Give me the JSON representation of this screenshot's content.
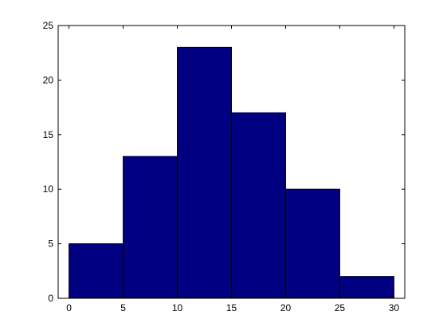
{
  "chart_data": {
    "type": "bar",
    "title": "",
    "xlabel": "",
    "ylabel": "",
    "bins": [
      {
        "x0": 0,
        "x1": 5,
        "count": 5
      },
      {
        "x0": 5,
        "x1": 10,
        "count": 13
      },
      {
        "x0": 10,
        "x1": 15,
        "count": 23
      },
      {
        "x0": 15,
        "x1": 20,
        "count": 17
      },
      {
        "x0": 20,
        "x1": 25,
        "count": 10
      },
      {
        "x0": 25,
        "x1": 30,
        "count": 2
      }
    ],
    "xlim": [
      -1,
      31
    ],
    "ylim": [
      0,
      25
    ],
    "xticks": [
      0,
      5,
      10,
      15,
      20,
      25,
      30
    ],
    "yticks": [
      0,
      5,
      10,
      15,
      20,
      25
    ],
    "grid": false,
    "colors": {
      "bar_fill": "#000080",
      "bar_edge": "#000000",
      "axis": "#000000",
      "background": "#ffffff"
    }
  }
}
